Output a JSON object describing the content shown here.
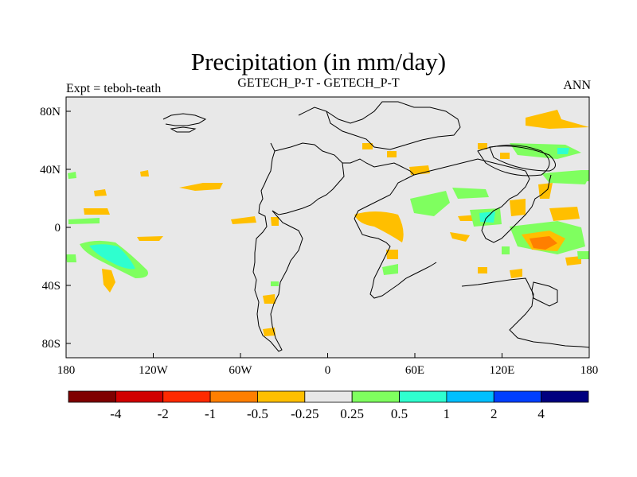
{
  "title": "Precipitation (in mm/day)",
  "subtitle_left": "Expt = teboh-teath",
  "subtitle_center": "GETECH_P-T - GETECH_P-T",
  "subtitle_right": "ANN",
  "x_ticks": [
    "180",
    "120W",
    "60W",
    "0",
    "60E",
    "120E",
    "180"
  ],
  "y_ticks": [
    "80N",
    "40N",
    "0",
    "40S",
    "80S"
  ],
  "colorbar": {
    "colors": [
      "#7f0000",
      "#d10000",
      "#ff2a00",
      "#ff7f00",
      "#ffbf00",
      "#e8e8e8",
      "#7fff5f",
      "#2fffcf",
      "#00bfff",
      "#003fff",
      "#00007f"
    ],
    "labels": [
      "-4",
      "-2",
      "-1",
      "-0.5",
      "-0.25",
      "0.25",
      "0.5",
      "1",
      "2",
      "4"
    ]
  },
  "colors": {
    "background": "#e8e8e8",
    "neg_small": "#ffbf00",
    "neg_medium": "#ff7f00",
    "pos_small": "#7fff5f",
    "pos_medium": "#2fffcf"
  }
}
